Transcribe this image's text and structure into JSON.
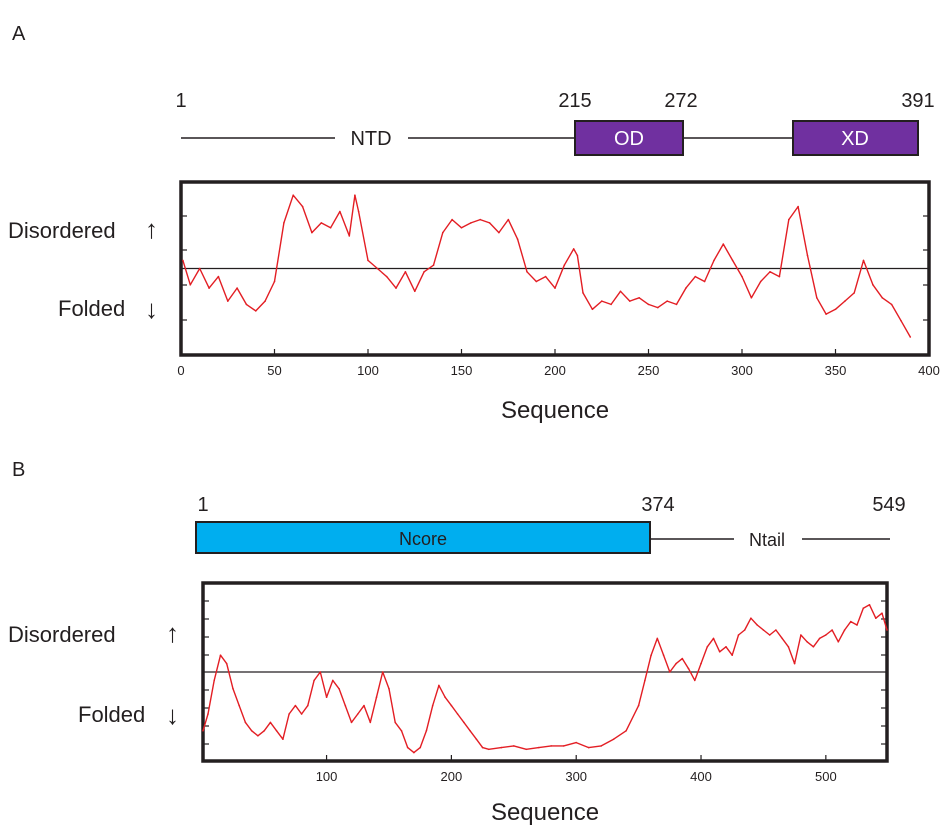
{
  "panels": {
    "a": {
      "letter": "A",
      "domain_map": {
        "residue_labels": [
          "1",
          "215",
          "272",
          "391"
        ],
        "linker_label": "NTD",
        "domains": [
          {
            "label": "OD",
            "color": "#7030a0"
          },
          {
            "label": "XD",
            "color": "#7030a0"
          }
        ]
      },
      "side_labels": {
        "disordered": "Disordered",
        "folded": "Folded",
        "up_arrow": "↑",
        "down_arrow": "↓"
      }
    },
    "b": {
      "letter": "B",
      "domain_map": {
        "residue_labels": [
          "1",
          "374",
          "549"
        ],
        "linker_label": "Ntail",
        "domains": [
          {
            "label": "Ncore",
            "color": "#00aeef"
          }
        ]
      },
      "side_labels": {
        "disordered": "Disordered",
        "folded": "Folded",
        "up_arrow": "↑",
        "down_arrow": "↓"
      }
    }
  },
  "chart_data": [
    {
      "type": "line",
      "panel": "A",
      "xlabel": "Sequence",
      "ylabel": "",
      "xlim": [
        0,
        400
      ],
      "ylim": [
        0,
        1
      ],
      "xticks": [
        0,
        50,
        100,
        150,
        200,
        250,
        300,
        350,
        400
      ],
      "threshold": 0.5,
      "line_color": "#e31e24",
      "grid": false,
      "x": [
        1,
        5,
        10,
        15,
        20,
        25,
        30,
        35,
        40,
        45,
        50,
        55,
        60,
        65,
        70,
        75,
        80,
        85,
        90,
        93,
        95,
        100,
        105,
        110,
        115,
        120,
        125,
        130,
        135,
        140,
        145,
        150,
        155,
        160,
        165,
        170,
        175,
        180,
        185,
        190,
        195,
        200,
        205,
        210,
        212,
        215,
        220,
        225,
        230,
        235,
        240,
        245,
        250,
        255,
        260,
        265,
        270,
        275,
        280,
        285,
        290,
        295,
        300,
        305,
        310,
        315,
        320,
        325,
        330,
        335,
        340,
        345,
        350,
        355,
        360,
        365,
        370,
        375,
        380,
        385,
        390
      ],
      "y": [
        0.55,
        0.4,
        0.5,
        0.38,
        0.45,
        0.3,
        0.38,
        0.28,
        0.24,
        0.3,
        0.42,
        0.78,
        0.95,
        0.88,
        0.72,
        0.78,
        0.75,
        0.85,
        0.7,
        0.95,
        0.85,
        0.55,
        0.5,
        0.45,
        0.38,
        0.48,
        0.36,
        0.48,
        0.52,
        0.72,
        0.8,
        0.75,
        0.78,
        0.8,
        0.78,
        0.72,
        0.8,
        0.68,
        0.48,
        0.42,
        0.45,
        0.38,
        0.52,
        0.62,
        0.58,
        0.35,
        0.25,
        0.3,
        0.28,
        0.36,
        0.3,
        0.32,
        0.28,
        0.26,
        0.3,
        0.28,
        0.38,
        0.45,
        0.42,
        0.55,
        0.65,
        0.55,
        0.45,
        0.32,
        0.42,
        0.48,
        0.45,
        0.8,
        0.88,
        0.58,
        0.32,
        0.22,
        0.25,
        0.3,
        0.35,
        0.55,
        0.4,
        0.32,
        0.28,
        0.18,
        0.08
      ]
    },
    {
      "type": "line",
      "panel": "B",
      "xlabel": "Sequence",
      "ylabel": "",
      "xlim": [
        1,
        549
      ],
      "ylim": [
        0,
        1
      ],
      "xticks": [
        100,
        200,
        300,
        400,
        500
      ],
      "threshold": 0.5,
      "line_color": "#e31e24",
      "grid": false,
      "x": [
        1,
        5,
        10,
        15,
        20,
        25,
        30,
        35,
        40,
        45,
        50,
        55,
        60,
        65,
        70,
        75,
        80,
        85,
        90,
        95,
        100,
        105,
        110,
        115,
        120,
        125,
        130,
        135,
        140,
        145,
        150,
        155,
        160,
        165,
        170,
        175,
        180,
        185,
        190,
        195,
        200,
        205,
        210,
        215,
        220,
        225,
        230,
        240,
        250,
        260,
        270,
        280,
        290,
        300,
        310,
        320,
        330,
        340,
        350,
        355,
        360,
        365,
        370,
        375,
        380,
        385,
        390,
        395,
        400,
        405,
        410,
        415,
        420,
        425,
        430,
        435,
        440,
        445,
        450,
        455,
        460,
        465,
        470,
        475,
        480,
        485,
        490,
        495,
        500,
        505,
        510,
        515,
        520,
        525,
        530,
        535,
        540,
        545,
        549
      ],
      "y": [
        0.15,
        0.25,
        0.45,
        0.6,
        0.55,
        0.4,
        0.3,
        0.2,
        0.15,
        0.12,
        0.15,
        0.2,
        0.15,
        0.1,
        0.25,
        0.3,
        0.25,
        0.3,
        0.45,
        0.5,
        0.35,
        0.45,
        0.4,
        0.3,
        0.2,
        0.25,
        0.3,
        0.2,
        0.35,
        0.5,
        0.4,
        0.2,
        0.15,
        0.05,
        0.02,
        0.05,
        0.15,
        0.3,
        0.42,
        0.35,
        0.3,
        0.25,
        0.2,
        0.15,
        0.1,
        0.05,
        0.04,
        0.05,
        0.06,
        0.04,
        0.05,
        0.06,
        0.06,
        0.08,
        0.05,
        0.06,
        0.1,
        0.15,
        0.3,
        0.45,
        0.6,
        0.7,
        0.6,
        0.5,
        0.55,
        0.58,
        0.52,
        0.45,
        0.55,
        0.65,
        0.7,
        0.62,
        0.65,
        0.6,
        0.72,
        0.75,
        0.82,
        0.78,
        0.75,
        0.72,
        0.75,
        0.7,
        0.65,
        0.55,
        0.72,
        0.68,
        0.65,
        0.7,
        0.72,
        0.75,
        0.68,
        0.75,
        0.8,
        0.78,
        0.88,
        0.9,
        0.82,
        0.85,
        0.75
      ]
    }
  ]
}
